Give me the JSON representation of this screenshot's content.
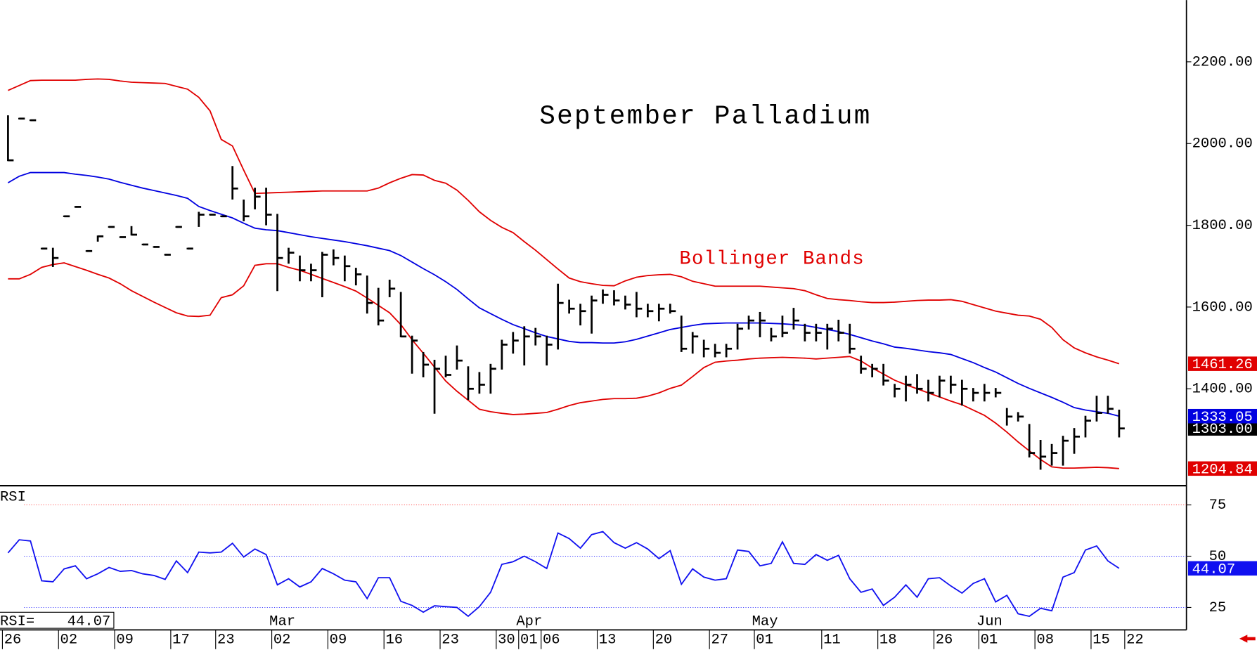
{
  "chart_data": [
    {
      "type": "ohlc",
      "title": "September Palladium",
      "annotation": "Bollinger Bands",
      "annotation_color": "#e00000",
      "categories": [
        "26",
        null,
        null,
        null,
        null,
        "02",
        null,
        null,
        null,
        null,
        "09",
        null,
        null,
        null,
        null,
        "17",
        null,
        null,
        null,
        "23",
        null,
        null,
        null,
        null,
        "02",
        null,
        null,
        null,
        null,
        "09",
        null,
        null,
        null,
        null,
        "16",
        null,
        null,
        null,
        null,
        "23",
        null,
        null,
        null,
        null,
        "30",
        null,
        "01",
        null,
        "06",
        null,
        null,
        null,
        null,
        "13",
        null,
        null,
        null,
        null,
        "20",
        null,
        null,
        null,
        null,
        "27",
        null,
        null,
        null,
        "01",
        null,
        null,
        null,
        null,
        null,
        "11",
        null,
        null,
        null,
        null,
        "18",
        null,
        null,
        null,
        null,
        "26",
        null,
        null,
        null,
        "01",
        null,
        null,
        null,
        null,
        "08",
        null,
        null,
        null,
        null,
        "15",
        null,
        null,
        "22"
      ],
      "months": {
        "24": "Mar",
        "46": "Apr",
        "67": "May",
        "87": "Jun"
      },
      "ylim": [
        1163,
        2351
      ],
      "yticks": [
        {
          "value": 1400,
          "label": "1400.00"
        },
        {
          "value": 1600,
          "label": "1600.00"
        },
        {
          "value": 1800,
          "label": "1800.00"
        },
        {
          "value": 2000,
          "label": "2000.00"
        },
        {
          "value": 2200,
          "label": "2200.00"
        }
      ],
      "color": "#000000",
      "high": [
        2067,
        2061,
        2057,
        1743,
        1743,
        1822,
        1845,
        1737,
        1773,
        1796,
        1771,
        1796,
        1753,
        1747,
        1728,
        1796,
        1743,
        1831,
        1826,
        1822,
        1943,
        1861,
        1890,
        1890,
        1826,
        1743,
        1724,
        1704,
        1733,
        1739,
        1724,
        1694,
        1675,
        1645,
        1665,
        1635,
        1528,
        1488,
        1469,
        1479,
        1504,
        1453,
        1439,
        1459,
        1518,
        1537,
        1551,
        1547,
        1528,
        1655,
        1616,
        1606,
        1626,
        1641,
        1639,
        1626,
        1635,
        1606,
        1606,
        1606,
        1577,
        1537,
        1518,
        1508,
        1508,
        1557,
        1577,
        1586,
        1547,
        1577,
        1596,
        1557,
        1557,
        1557,
        1567,
        1557,
        1479,
        1459,
        1459,
        1410,
        1430,
        1434,
        1420,
        1430,
        1430,
        1420,
        1400,
        1410,
        1400,
        1351,
        1341,
        1312,
        1273,
        1263,
        1283,
        1302,
        1332,
        1381,
        1381,
        1347,
        null
      ],
      "low": [
        1959,
        2061,
        2057,
        1743,
        1700,
        1822,
        1845,
        1737,
        1762,
        1796,
        1771,
        1777,
        1753,
        1747,
        1728,
        1796,
        1743,
        1798,
        1826,
        1822,
        1865,
        1812,
        1841,
        1802,
        1641,
        1708,
        1665,
        1665,
        1626,
        1704,
        1665,
        1655,
        1586,
        1557,
        1626,
        1528,
        1439,
        1430,
        1341,
        1430,
        1449,
        1375,
        1390,
        1390,
        1449,
        1488,
        1459,
        1508,
        1459,
        1498,
        1586,
        1557,
        1537,
        1610,
        1606,
        1596,
        1577,
        1577,
        1567,
        1586,
        1492,
        1488,
        1479,
        1479,
        1479,
        1498,
        1547,
        1528,
        1518,
        1528,
        1547,
        1518,
        1518,
        1498,
        1518,
        1488,
        1439,
        1430,
        1410,
        1381,
        1371,
        1390,
        1371,
        1381,
        1390,
        1361,
        1371,
        1371,
        1381,
        1312,
        1322,
        1234,
        1204,
        1214,
        1214,
        1243,
        1283,
        1322,
        1341,
        1283,
        null
      ],
      "close": [
        1959,
        2061,
        2057,
        1743,
        1720,
        1822,
        1845,
        1737,
        1773,
        1796,
        1771,
        1777,
        1753,
        1747,
        1728,
        1796,
        1743,
        1826,
        1826,
        1822,
        1890,
        1822,
        1870,
        1826,
        1720,
        1733,
        1690,
        1690,
        1728,
        1720,
        1700,
        1680,
        1610,
        1567,
        1645,
        1528,
        1518,
        1459,
        1449,
        1434,
        1469,
        1400,
        1410,
        1449,
        1508,
        1518,
        1528,
        1528,
        1508,
        1610,
        1596,
        1590,
        1616,
        1630,
        1616,
        1606,
        1596,
        1590,
        1596,
        1590,
        1498,
        1528,
        1498,
        1488,
        1498,
        1547,
        1567,
        1567,
        1528,
        1537,
        1567,
        1537,
        1537,
        1547,
        1537,
        1498,
        1449,
        1449,
        1420,
        1400,
        1410,
        1400,
        1390,
        1420,
        1410,
        1400,
        1390,
        1390,
        1390,
        1332,
        1332,
        1243,
        1234,
        1243,
        1273,
        1283,
        1322,
        1341,
        1351,
        1303,
        null
      ],
      "close_labels": {
        "99": "1303.00"
      },
      "bands": [
        {
          "color": "#e00000",
          "values": [
            2130,
            2142,
            2154,
            2155,
            2155,
            2155,
            2155,
            2157,
            2158,
            2157,
            2153,
            2150,
            2149,
            2148,
            2147,
            2140,
            2133,
            2113,
            2080,
            2010,
            1994,
            1935,
            1878,
            1879,
            1880,
            1881,
            1882,
            1883,
            1884,
            1884,
            1884,
            1884,
            1884,
            1891,
            1904,
            1915,
            1924,
            1923,
            1910,
            1903,
            1886,
            1861,
            1833,
            1812,
            1795,
            1782,
            1760,
            1739,
            1716,
            1693,
            1671,
            1662,
            1657,
            1653,
            1652,
            1664,
            1673,
            1677,
            1679,
            1680,
            1674,
            1663,
            1657,
            1651,
            1651,
            1651,
            1651,
            1651,
            1649,
            1647,
            1645,
            1640,
            1630,
            1621,
            1618,
            1616,
            1613,
            1611,
            1611,
            1612,
            1614,
            1616,
            1617,
            1617,
            1618,
            1614,
            1606,
            1598,
            1590,
            1585,
            1580,
            1578,
            1570,
            1550,
            1520,
            1500,
            1488,
            1478,
            1470,
            1461.26,
            null
          ],
          "value_labels": {
            "99": "1461.26"
          }
        },
        {
          "color": "#0000e0",
          "values": [
            1904,
            1920,
            1929,
            1929,
            1929,
            1929,
            1925,
            1922,
            1918,
            1913,
            1905,
            1898,
            1891,
            1885,
            1879,
            1873,
            1866,
            1846,
            1836,
            1827,
            1818,
            1805,
            1793,
            1789,
            1787,
            1782,
            1777,
            1772,
            1768,
            1764,
            1760,
            1755,
            1750,
            1744,
            1738,
            1726,
            1710,
            1694,
            1679,
            1662,
            1643,
            1620,
            1598,
            1584,
            1570,
            1557,
            1547,
            1537,
            1528,
            1522,
            1516,
            1513,
            1513,
            1512,
            1512,
            1515,
            1521,
            1529,
            1537,
            1545,
            1550,
            1555,
            1559,
            1560,
            1561,
            1561,
            1561,
            1561,
            1560,
            1559,
            1557,
            1555,
            1550,
            1545,
            1540,
            1533,
            1525,
            1517,
            1510,
            1502,
            1499,
            1495,
            1491,
            1488,
            1484,
            1474,
            1464,
            1452,
            1441,
            1427,
            1413,
            1401,
            1390,
            1379,
            1367,
            1354,
            1348,
            1344,
            1340,
            1333.05,
            null
          ],
          "value_labels": {
            "99": "1333.05"
          }
        },
        {
          "color": "#e00000",
          "values": [
            1669,
            1669,
            1680,
            1697,
            1704,
            1708,
            1699,
            1690,
            1680,
            1671,
            1657,
            1640,
            1626,
            1612,
            1599,
            1586,
            1578,
            1577,
            1580,
            1623,
            1630,
            1652,
            1702,
            1706,
            1706,
            1697,
            1690,
            1680,
            1670,
            1660,
            1650,
            1639,
            1622,
            1604,
            1586,
            1557,
            1520,
            1487,
            1453,
            1419,
            1394,
            1372,
            1350,
            1344,
            1340,
            1337,
            1338,
            1340,
            1342,
            1350,
            1359,
            1366,
            1370,
            1374,
            1376,
            1376,
            1377,
            1382,
            1390,
            1401,
            1409,
            1430,
            1452,
            1465,
            1468,
            1470,
            1473,
            1475,
            1476,
            1477,
            1476,
            1475,
            1473,
            1475,
            1477,
            1479,
            1468,
            1451,
            1436,
            1421,
            1410,
            1400,
            1390,
            1380,
            1370,
            1361,
            1348,
            1335,
            1316,
            1294,
            1270,
            1248,
            1227,
            1209,
            1206,
            1206,
            1207,
            1208,
            1207,
            1204.84,
            null
          ],
          "value_labels": {
            "99": "1204.84"
          }
        }
      ]
    },
    {
      "type": "line",
      "title": "RSI",
      "readout_label": "RSI=",
      "color": "#1010f0",
      "ylim": [
        16.4,
        84
      ],
      "yticks": [
        25,
        50,
        75
      ],
      "grid_colors": [
        "#3030ff",
        "#3030ff",
        "#ff3030"
      ],
      "values": [
        51.6,
        58,
        57.4,
        38,
        37.5,
        43.8,
        45.3,
        39,
        41.4,
        44.5,
        42.6,
        43,
        41.4,
        40.6,
        38.7,
        47.7,
        42,
        52,
        51.6,
        52,
        56.3,
        49.6,
        53.5,
        50.8,
        36,
        39,
        35,
        37.5,
        44,
        41.4,
        38.3,
        37.5,
        29.3,
        39.5,
        39.5,
        28,
        26,
        22.7,
        25.8,
        25.4,
        25,
        20.7,
        25.4,
        32.4,
        46,
        47.3,
        50,
        47.3,
        44,
        61.3,
        58.6,
        53.9,
        60.5,
        62,
        56.6,
        53.9,
        56.6,
        53.5,
        48.8,
        52.7,
        36.3,
        43.8,
        39.8,
        38.3,
        39,
        53,
        52.3,
        45.3,
        46.5,
        57,
        46.5,
        46,
        50.8,
        48,
        50.4,
        39,
        32.4,
        34,
        26,
        30,
        36,
        30,
        39,
        39.5,
        35.5,
        32,
        36.7,
        39,
        27.7,
        30.9,
        21.9,
        20.7,
        24.6,
        23.4,
        39.8,
        42,
        53,
        55,
        47.7,
        44.07,
        null
      ],
      "value_labels": {
        "99": "44.07"
      }
    }
  ]
}
